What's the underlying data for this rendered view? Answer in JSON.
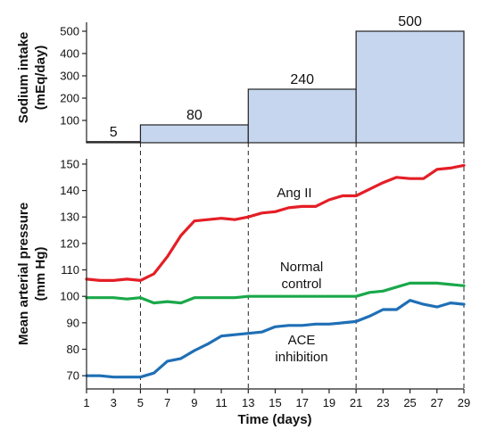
{
  "chart_data": [
    {
      "type": "bar",
      "ylabel": [
        "Sodium intake",
        "(mEq/day)"
      ],
      "ylim": [
        0,
        500
      ],
      "yticks": [
        100,
        200,
        300,
        400,
        500
      ],
      "steps": [
        {
          "from_day": 1,
          "to_day": 5,
          "value": 5,
          "label": "5"
        },
        {
          "from_day": 5,
          "to_day": 13,
          "value": 80,
          "label": "80"
        },
        {
          "from_day": 13,
          "to_day": 21,
          "value": 240,
          "label": "240"
        },
        {
          "from_day": 21,
          "to_day": 29,
          "value": 500,
          "label": "500"
        }
      ],
      "fill_color": "#c6d6ee"
    },
    {
      "type": "line",
      "ylabel": [
        "Mean arterial pressure",
        "(mm Hg)"
      ],
      "xlabel": "Time (days)",
      "xlim": [
        1,
        29
      ],
      "xticks": [
        1,
        3,
        5,
        7,
        9,
        11,
        13,
        15,
        17,
        19,
        21,
        23,
        25,
        27,
        29
      ],
      "ylim": [
        65,
        152
      ],
      "yticks": [
        70,
        80,
        90,
        100,
        110,
        120,
        130,
        140,
        150
      ],
      "series": [
        {
          "name": "Ang II",
          "color": "#e41e26",
          "x": [
            1,
            2,
            3,
            4,
            5,
            6,
            7,
            8,
            9,
            10,
            11,
            12,
            13,
            14,
            15,
            16,
            17,
            18,
            19,
            20,
            21,
            22,
            23,
            24,
            25,
            26,
            27,
            28,
            29
          ],
          "y": [
            106.5,
            106,
            106,
            106.5,
            106,
            108.5,
            115,
            123,
            128.5,
            129,
            129.5,
            129,
            130,
            131.5,
            132,
            133.5,
            134,
            134,
            136.5,
            138,
            138,
            140.5,
            143,
            145,
            144.5,
            144.5,
            148,
            148.5,
            149.5
          ]
        },
        {
          "name": "Normal control",
          "label_lines": [
            "Normal",
            "control"
          ],
          "color": "#1aa84a",
          "x": [
            1,
            2,
            3,
            4,
            5,
            6,
            7,
            8,
            9,
            10,
            11,
            12,
            13,
            14,
            15,
            16,
            17,
            18,
            19,
            20,
            21,
            22,
            23,
            24,
            25,
            26,
            27,
            28,
            29
          ],
          "y": [
            99.5,
            99.5,
            99.5,
            99,
            99.5,
            97.5,
            98,
            97.5,
            99.5,
            99.5,
            99.5,
            99.5,
            100,
            100,
            100,
            100,
            100,
            100,
            100,
            100,
            100,
            101.5,
            102,
            103.5,
            105,
            105,
            105,
            104.5,
            104
          ]
        },
        {
          "name": "ACE inhibition",
          "label_lines": [
            "ACE",
            "inhibition"
          ],
          "color": "#1f6fb5",
          "x": [
            1,
            2,
            3,
            4,
            5,
            6,
            7,
            8,
            9,
            10,
            11,
            12,
            13,
            14,
            15,
            16,
            17,
            18,
            19,
            20,
            21,
            22,
            23,
            24,
            25,
            26,
            27,
            28,
            29
          ],
          "y": [
            70,
            70,
            69.5,
            69.5,
            69.5,
            71,
            75.5,
            76.5,
            79.5,
            82,
            85,
            85.5,
            86,
            86.5,
            88.5,
            89,
            89,
            89.5,
            89.5,
            90,
            90.5,
            92.5,
            95,
            95,
            98.5,
            97,
            96,
            97.5,
            97
          ]
        }
      ],
      "dividers_at_day": [
        5,
        13,
        21,
        29
      ]
    }
  ]
}
